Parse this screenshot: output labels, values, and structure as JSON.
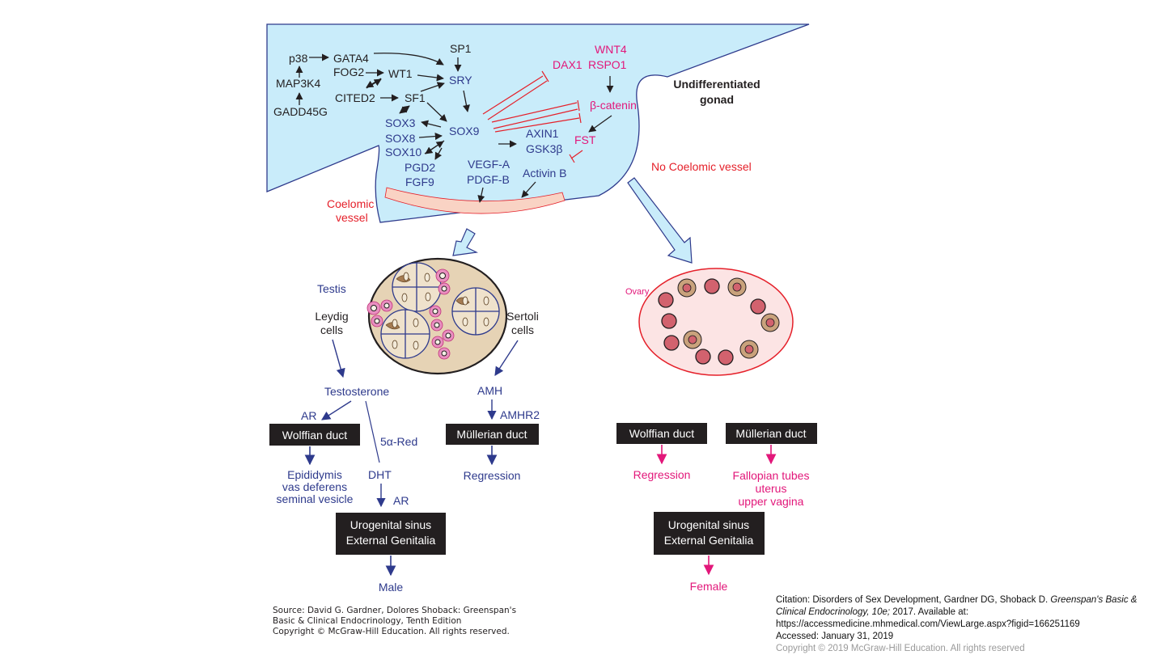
{
  "gonad": {
    "title_line1": "Undifferentiated",
    "title_line2": "gonad",
    "coelomic_line1": "Coelomic",
    "coelomic_line2": "vessel",
    "no_coelomic": "No Coelomic vessel"
  },
  "pathway": {
    "p38": "p38",
    "gata4": "GATA4",
    "map3k4": "MAP3K4",
    "gadd45g": "GADD45G",
    "fog2": "FOG2",
    "wt1": "WT1",
    "cited2": "CITED2",
    "sf1": "SF1",
    "sp1": "SP1",
    "sry": "SRY",
    "sox9": "SOX9",
    "sox3": "SOX3",
    "sox8": "SOX8",
    "sox10": "SOX10",
    "pgd2": "PGD2",
    "fgf9": "FGF9",
    "vegfa": "VEGF-A",
    "pdgfb": "PDGF-B",
    "activinb": "Activin B",
    "axin1": "AXIN1",
    "gsk3b": "GSK3β",
    "fst": "FST",
    "bcatenin": "β-catenin",
    "wnt4": "WNT4",
    "dax1": "DAX1",
    "rspo1": "RSPO1"
  },
  "male": {
    "testis": "Testis",
    "leydig_line1": "Leydig",
    "leydig_line2": "cells",
    "sertoli_line1": "Sertoli",
    "sertoli_line2": "cells",
    "testosterone": "Testosterone",
    "ar1": "AR",
    "wolffian": "Wolffian duct",
    "five_alpha": "5α-Red",
    "dht": "DHT",
    "ar2": "AR",
    "amh": "AMH",
    "amhr2": "AMHR2",
    "mullerian": "Müllerian duct",
    "regression": "Regression",
    "epi_line1": "Epididymis",
    "epi_line2": "vas deferens",
    "epi_line3": "seminal vesicle",
    "ugs_line1": "Urogenital sinus",
    "ugs_line2": "External Genitalia",
    "outcome": "Male"
  },
  "female": {
    "ovary": "Ovary",
    "wolffian": "Wolffian duct",
    "mullerian": "Müllerian duct",
    "regression": "Regression",
    "fal_line1": "Fallopian tubes",
    "fal_line2": "uterus",
    "fal_line3": "upper vagina",
    "ugs_line1": "Urogenital sinus",
    "ugs_line2": "External Genitalia",
    "outcome": "Female"
  },
  "source": {
    "line1": "Source: David G. Gardner, Dolores Shoback: Greenspan's",
    "line2": "Basic & Clinical Endocrinology, Tenth Edition",
    "line3": "Copyright © McGraw-Hill Education. All rights reserved."
  },
  "citation": {
    "prefix": "Citation: Disorders of Sex Development, Gardner DG, Shoback D. ",
    "book": "Greenspan's Basic & Clinical Endocrinology, 10e;",
    "suffix": " 2017. Available at:",
    "url": "https://accessmedicine.mhmedical.com/ViewLarge.aspx?figid=166251169",
    "accessed": "Accessed: January 31, 2019",
    "copyright": "Copyright © 2019 McGraw-Hill Education. All rights reserved"
  },
  "colors": {
    "gonad_fill": "#c9ecfa",
    "outline_blue": "#2e3a8c",
    "magenta": "#e2177a",
    "red": "#e5202a",
    "testis_fill": "#e6d3b5",
    "ovary_fill": "#fce4e4",
    "box_fill": "#231f20"
  }
}
